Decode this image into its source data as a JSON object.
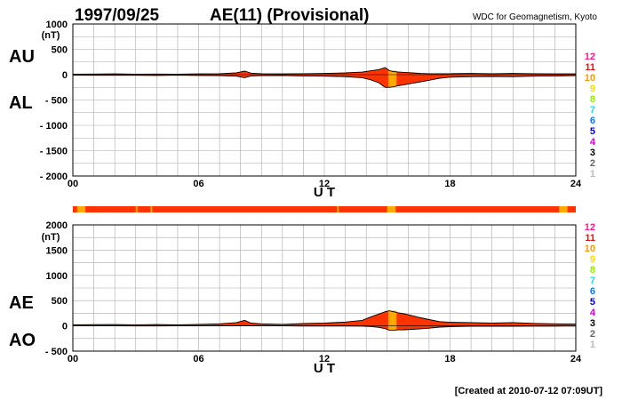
{
  "header": {
    "date": "1997/09/25",
    "title": "AE(11) (Provisional)",
    "source": "WDC for Geomagnetism, Kyoto"
  },
  "footer": {
    "created": "[Created at 2010-07-12 07:09UT]"
  },
  "colors": {
    "fill": "#ff3300",
    "gap_fill": "#ffaa00",
    "grid": "#aaaaaa",
    "line": "#000000"
  },
  "station_legend": [
    {
      "label": "12",
      "color": "#ff1a8c"
    },
    {
      "label": "11",
      "color": "#ee1111"
    },
    {
      "label": "10",
      "color": "#ff9900"
    },
    {
      "label": "9",
      "color": "#ffdd00"
    },
    {
      "label": "8",
      "color": "#99ee00"
    },
    {
      "label": "7",
      "color": "#22ddee"
    },
    {
      "label": "6",
      "color": "#1177ff"
    },
    {
      "label": "5",
      "color": "#0000cc"
    },
    {
      "label": "4",
      "color": "#cc00cc"
    },
    {
      "label": "3",
      "color": "#000000"
    },
    {
      "label": "2",
      "color": "#666666"
    },
    {
      "label": "1",
      "color": "#bbbbbb"
    }
  ],
  "chart_data": [
    {
      "type": "area",
      "name": "upper",
      "ylabel_unit": "(nT)",
      "series_labels": [
        "AU",
        "AL"
      ],
      "xlabel": "U T",
      "xlim": [
        0,
        24
      ],
      "x_ticks": [
        "00",
        "06",
        "12",
        "18",
        "24"
      ],
      "ylim": [
        -2000,
        1000
      ],
      "y_ticks": [
        "1000",
        "500",
        "0",
        "- 500",
        "- 1000",
        "- 1500",
        "- 2000"
      ],
      "grid": true,
      "x": [
        0,
        1,
        2,
        3,
        4,
        5,
        6,
        7,
        7.8,
        8.2,
        8.5,
        9,
        10,
        11,
        12,
        13,
        13.8,
        14.2,
        14.6,
        14.9,
        15.1,
        15.3,
        15.5,
        15.8,
        16.2,
        16.6,
        17,
        17.5,
        18,
        19,
        20,
        21,
        22,
        23,
        24
      ],
      "AU": [
        10,
        12,
        15,
        10,
        12,
        10,
        15,
        20,
        35,
        70,
        30,
        20,
        15,
        20,
        25,
        35,
        50,
        75,
        100,
        140,
        80,
        60,
        55,
        45,
        35,
        25,
        20,
        20,
        20,
        25,
        20,
        25,
        20,
        15,
        15
      ],
      "AL": [
        -10,
        -12,
        -12,
        -12,
        -15,
        -10,
        -15,
        -20,
        -30,
        -60,
        -25,
        -20,
        -15,
        -25,
        -30,
        -40,
        -60,
        -100,
        -160,
        -250,
        -250,
        -240,
        -220,
        -200,
        -170,
        -140,
        -110,
        -70,
        -50,
        -40,
        -35,
        -40,
        -30,
        -25,
        -20
      ]
    },
    {
      "type": "area",
      "name": "lower",
      "ylabel_unit": "(nT)",
      "series_labels": [
        "AE",
        "AO"
      ],
      "xlabel": "U T",
      "xlim": [
        0,
        24
      ],
      "x_ticks": [
        "00",
        "06",
        "12",
        "18",
        "24"
      ],
      "ylim": [
        -500,
        2000
      ],
      "y_ticks": [
        "2000",
        "1500",
        "1000",
        "500",
        "0",
        "- 500"
      ],
      "grid": true,
      "x": [
        0,
        1,
        2,
        3,
        4,
        5,
        6,
        7,
        7.8,
        8.2,
        8.5,
        9,
        10,
        11,
        12,
        13,
        13.8,
        14.2,
        14.6,
        14.9,
        15.1,
        15.3,
        15.5,
        15.8,
        16.2,
        16.6,
        17,
        17.5,
        18,
        19,
        20,
        21,
        22,
        23,
        24
      ],
      "AE": [
        20,
        24,
        27,
        22,
        27,
        20,
        30,
        40,
        65,
        110,
        55,
        40,
        30,
        45,
        55,
        75,
        110,
        175,
        235,
        280,
        300,
        280,
        260,
        240,
        200,
        160,
        125,
        85,
        70,
        65,
        55,
        65,
        50,
        40,
        35
      ],
      "AO": [
        0,
        0,
        2,
        -1,
        -2,
        0,
        0,
        0,
        3,
        5,
        3,
        0,
        0,
        -3,
        -3,
        -3,
        -5,
        -13,
        -30,
        -55,
        -85,
        -90,
        -80,
        -78,
        -68,
        -58,
        -45,
        -25,
        -15,
        -8,
        -8,
        -8,
        -5,
        -5,
        -3
      ]
    }
  ],
  "quality_bar": {
    "segments_orange": [
      [
        0.2,
        0.6
      ],
      [
        15.0,
        15.4
      ],
      [
        23.2,
        23.6
      ]
    ],
    "ticks_orange": [
      3.0,
      3.7,
      12.6
    ]
  }
}
